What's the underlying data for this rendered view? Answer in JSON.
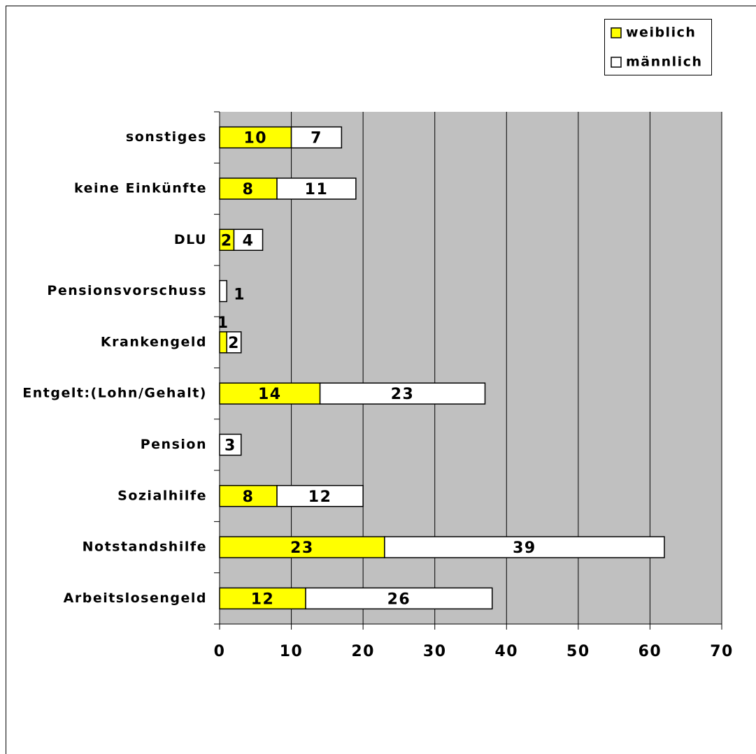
{
  "chart_data": {
    "type": "stacked-barh",
    "categories": [
      "sonstiges",
      "keine Einkünfte",
      "DLU",
      "Pensionsvorschuss",
      "Krankengeld",
      "Entgelt:(Lohn/Gehalt)",
      "Pension",
      "Sozialhilfe",
      "Notstandshilfe",
      "Arbeitslosengeld"
    ],
    "series": [
      {
        "name": "weiblich",
        "color": "#ffff00",
        "values": [
          10,
          8,
          2,
          null,
          1,
          14,
          null,
          8,
          23,
          12
        ]
      },
      {
        "name": "männlich",
        "color": "#ffffff",
        "values": [
          7,
          11,
          4,
          1,
          2,
          23,
          3,
          12,
          39,
          26
        ]
      }
    ],
    "xlim": [
      0,
      70
    ],
    "xticks": [
      0,
      10,
      20,
      30,
      40,
      50,
      60,
      70
    ],
    "grid": true,
    "legend": "top-right",
    "background": "#c0c0c0"
  }
}
